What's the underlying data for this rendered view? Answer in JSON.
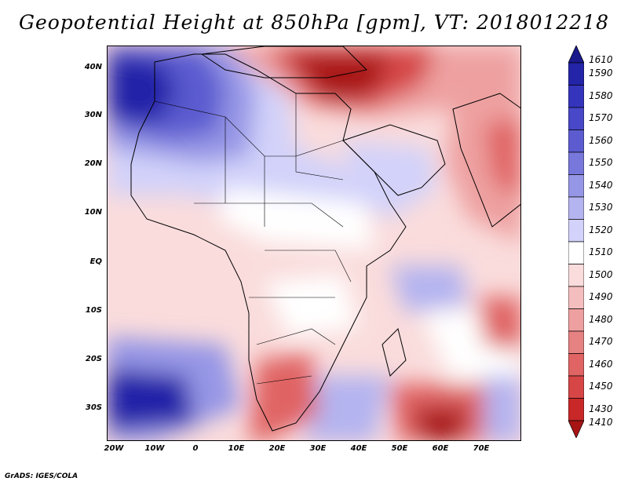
{
  "title": "Geopotential Height at 850hPa [gpm], VT: 2018012218",
  "footer": "GrADS: IGES/COLA",
  "axes": {
    "lat_labels": [
      "40N",
      "30N",
      "20N",
      "10N",
      "EQ",
      "10S",
      "20S",
      "30S"
    ],
    "lon_labels": [
      "20W",
      "10W",
      "0",
      "10E",
      "20E",
      "30E",
      "40E",
      "50E",
      "60E",
      "70E"
    ]
  },
  "colorbar": {
    "levels": [
      "1610",
      "1590",
      "1580",
      "1570",
      "1560",
      "1550",
      "1540",
      "1530",
      "1520",
      "1510",
      "1500",
      "1490",
      "1480",
      "1470",
      "1460",
      "1450",
      "1430",
      "1410"
    ],
    "colors": [
      "#1a1a8c",
      "#2424a8",
      "#3434bc",
      "#4848c8",
      "#5c5cd0",
      "#7878dc",
      "#9696e6",
      "#b4b4f0",
      "#d2d2fa",
      "#ffffff",
      "#fadcdc",
      "#f4bebe",
      "#eea0a0",
      "#e68282",
      "#e06464",
      "#d64646",
      "#c82828",
      "#a81414"
    ]
  }
}
